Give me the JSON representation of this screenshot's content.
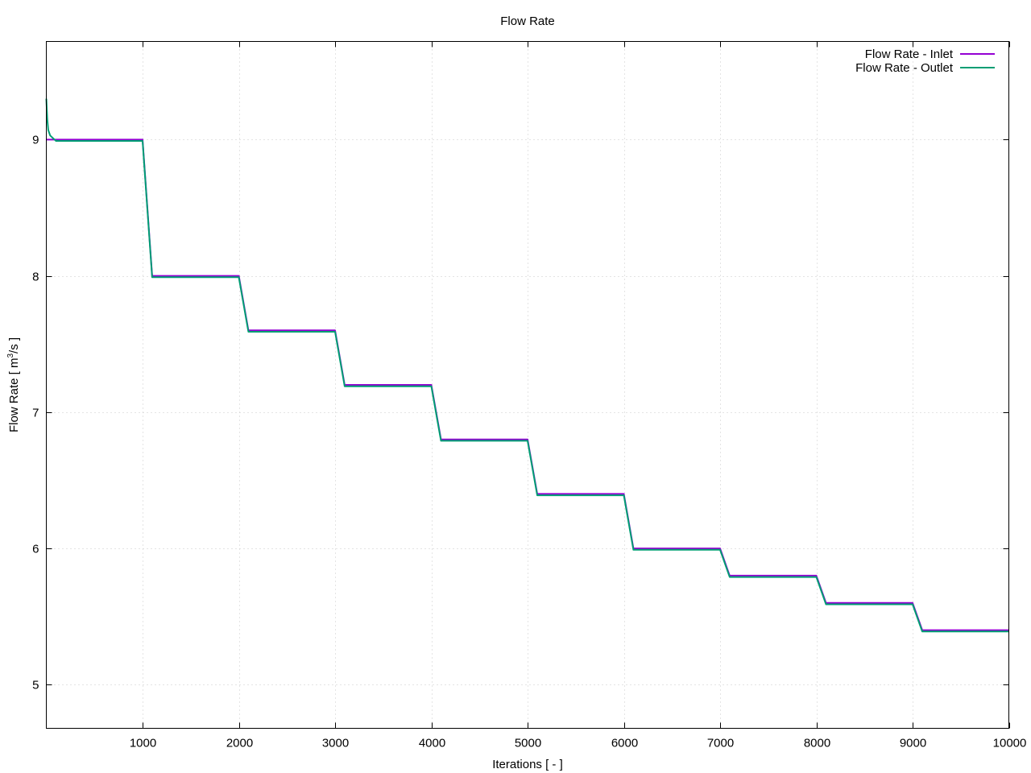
{
  "chart_data": {
    "type": "line",
    "title": "Flow Rate",
    "xlabel": "Iterations [ - ]",
    "ylabel": "Flow Rate [ m3/s ]",
    "ylabel_parts": {
      "prefix": "Flow Rate [ m",
      "superscript": "3",
      "suffix": "/s ]"
    },
    "xlim": [
      0,
      10000
    ],
    "ylim": [
      4.68,
      9.72
    ],
    "x_ticks": [
      1000,
      2000,
      3000,
      4000,
      5000,
      6000,
      7000,
      8000,
      9000,
      10000
    ],
    "x_tick_labels": [
      "1000",
      "2000",
      "3000",
      "4000",
      "5000",
      "6000",
      "7000",
      "8000",
      "9000",
      "10000"
    ],
    "y_ticks": [
      5,
      6,
      7,
      8,
      9
    ],
    "y_tick_labels": [
      "5",
      "6",
      "7",
      "8",
      "9"
    ],
    "grid": true,
    "legend_position": "top-right",
    "series": [
      {
        "name": "Flow Rate - Inlet",
        "color": "#9400d3",
        "points": [
          [
            0,
            9.0
          ],
          [
            1000,
            9.0
          ],
          [
            1100,
            8.0
          ],
          [
            2000,
            8.0
          ],
          [
            2100,
            7.6
          ],
          [
            3000,
            7.6
          ],
          [
            3100,
            7.2
          ],
          [
            4000,
            7.2
          ],
          [
            4100,
            6.8
          ],
          [
            5000,
            6.8
          ],
          [
            5100,
            6.4
          ],
          [
            6000,
            6.4
          ],
          [
            6100,
            6.0
          ],
          [
            7000,
            6.0
          ],
          [
            7100,
            5.8
          ],
          [
            8000,
            5.8
          ],
          [
            8100,
            5.6
          ],
          [
            9000,
            5.6
          ],
          [
            9100,
            5.4
          ],
          [
            10000,
            5.4
          ]
        ]
      },
      {
        "name": "Flow Rate - Outlet",
        "color": "#009e73",
        "points": [
          [
            0,
            9.3
          ],
          [
            10,
            9.15
          ],
          [
            20,
            9.07
          ],
          [
            40,
            9.03
          ],
          [
            70,
            9.01
          ],
          [
            100,
            8.99
          ],
          [
            500,
            8.99
          ],
          [
            1000,
            8.99
          ],
          [
            1100,
            7.99
          ],
          [
            2000,
            7.99
          ],
          [
            2100,
            7.59
          ],
          [
            3000,
            7.59
          ],
          [
            3100,
            7.19
          ],
          [
            4000,
            7.19
          ],
          [
            4100,
            6.79
          ],
          [
            5000,
            6.79
          ],
          [
            5100,
            6.39
          ],
          [
            6000,
            6.39
          ],
          [
            6100,
            5.99
          ],
          [
            7000,
            5.99
          ],
          [
            7100,
            5.79
          ],
          [
            8000,
            5.79
          ],
          [
            8100,
            5.59
          ],
          [
            9000,
            5.59
          ],
          [
            9100,
            5.39
          ],
          [
            10000,
            5.39
          ]
        ]
      }
    ]
  }
}
